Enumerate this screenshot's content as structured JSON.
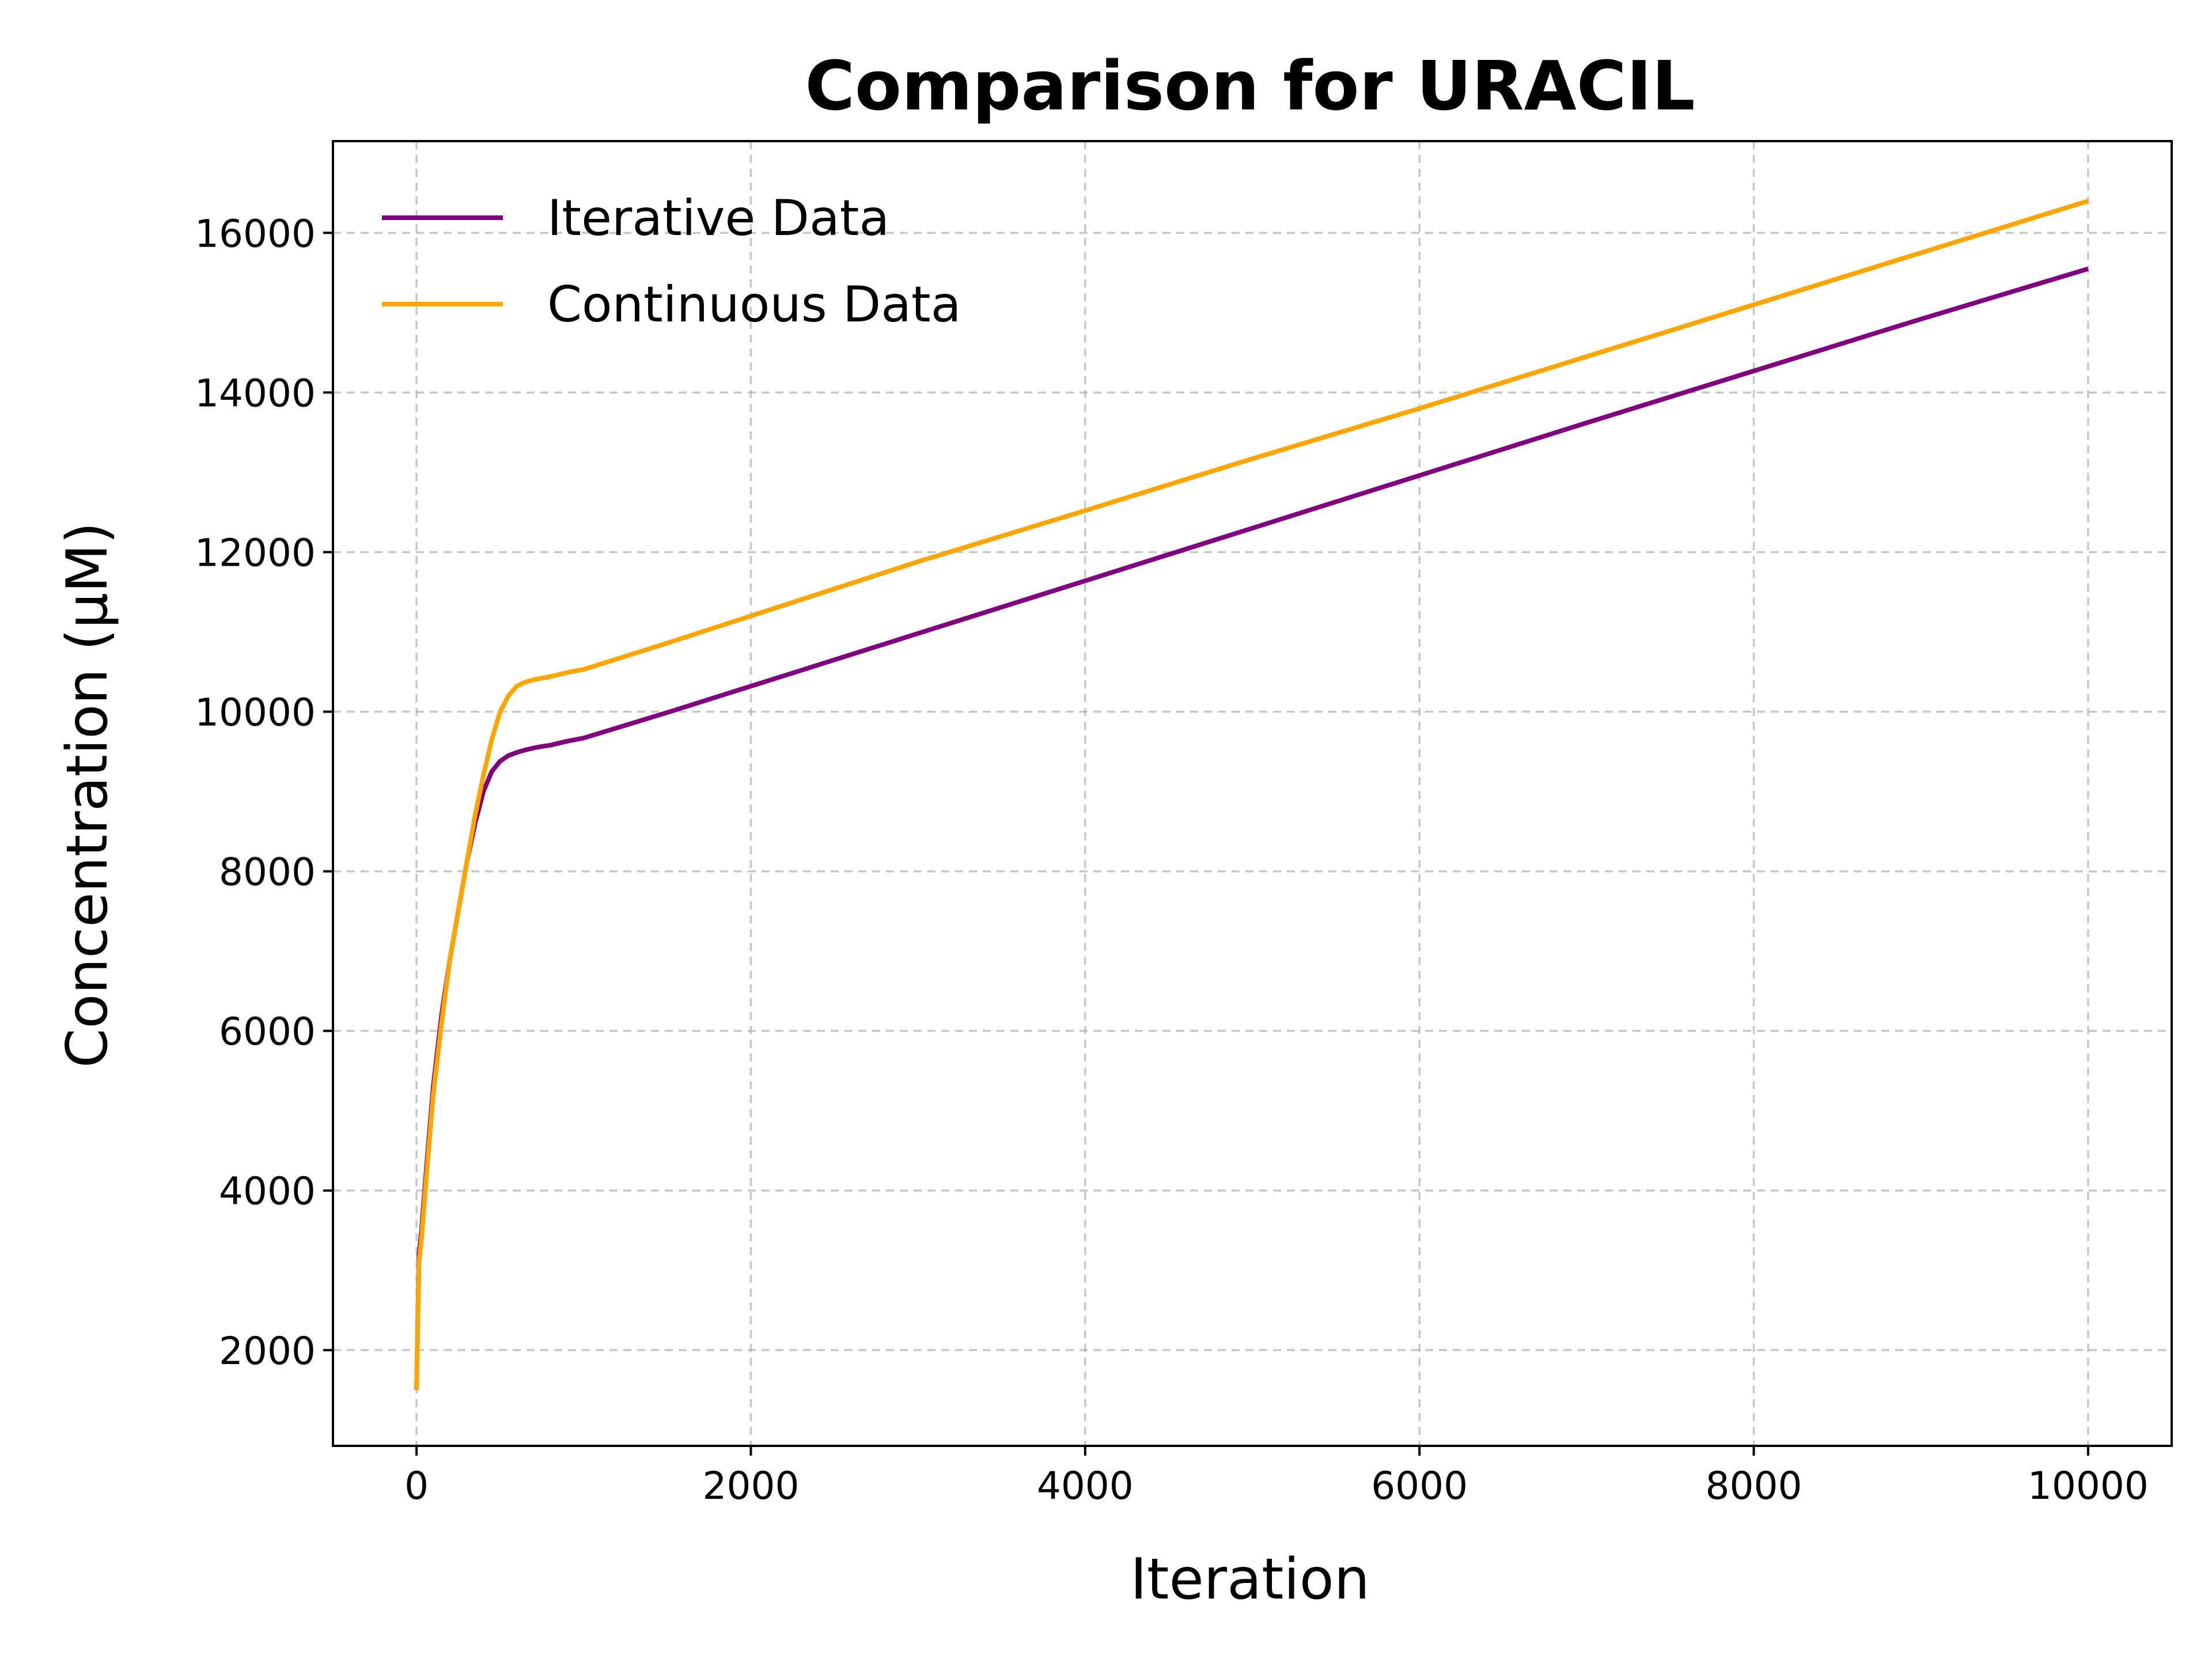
{
  "chart_data": {
    "type": "line",
    "title": "Comparison for URACIL",
    "xlabel": "Iteration",
    "ylabel": "Concentration (μM)",
    "xlim": [
      -500,
      10500
    ],
    "ylim": [
      800,
      17150
    ],
    "xticks": [
      0,
      2000,
      4000,
      6000,
      8000,
      10000
    ],
    "yticks": [
      2000,
      4000,
      6000,
      8000,
      10000,
      12000,
      14000,
      16000
    ],
    "grid": true,
    "legend_position": "upper-left",
    "series": [
      {
        "name": "Iterative Data",
        "color": "#800080",
        "x": [
          0,
          15,
          30,
          60,
          100,
          150,
          200,
          250,
          300,
          350,
          400,
          450,
          500,
          550,
          600,
          650,
          700,
          750,
          800,
          900,
          1000,
          1500,
          2000,
          3000,
          4000,
          5000,
          6000,
          7000,
          8000,
          9000,
          10000
        ],
        "y": [
          1500,
          3200,
          3500,
          4300,
          5300,
          6200,
          6900,
          7500,
          8100,
          8600,
          9000,
          9250,
          9380,
          9450,
          9490,
          9520,
          9545,
          9565,
          9580,
          9630,
          9670,
          9990,
          10320,
          10980,
          11640,
          12300,
          12960,
          13620,
          14270,
          14920,
          15550
        ]
      },
      {
        "name": "Continuous Data",
        "color": "#ffa500",
        "x": [
          0,
          15,
          30,
          60,
          100,
          150,
          200,
          250,
          300,
          350,
          400,
          450,
          500,
          550,
          600,
          650,
          700,
          750,
          800,
          900,
          1000,
          1500,
          2000,
          3000,
          4000,
          5000,
          6000,
          7000,
          8000,
          9000,
          10000
        ],
        "y": [
          1500,
          3100,
          3400,
          4200,
          5200,
          6100,
          6900,
          7500,
          8100,
          8700,
          9200,
          9650,
          10000,
          10200,
          10320,
          10370,
          10400,
          10420,
          10440,
          10490,
          10530,
          10860,
          11200,
          11880,
          12520,
          13170,
          13800,
          14450,
          15100,
          15750,
          16400
        ]
      }
    ]
  }
}
